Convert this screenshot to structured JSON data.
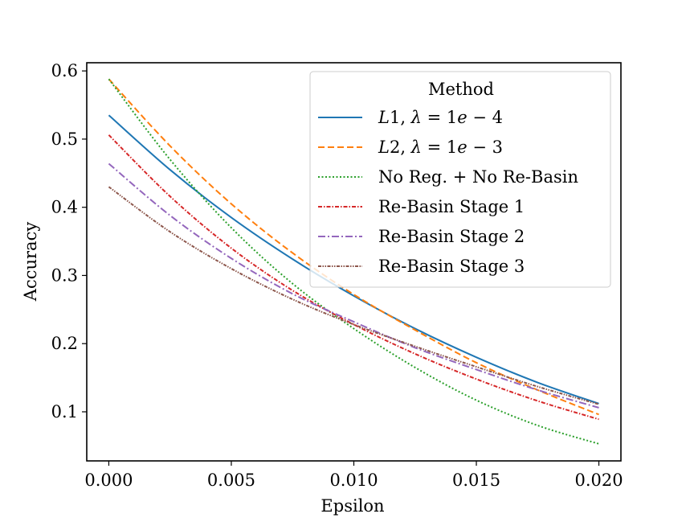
{
  "chart_data": {
    "type": "line",
    "title": "",
    "xlabel": "Epsilon",
    "ylabel": "Accuracy",
    "xlim": [
      -0.0009,
      0.0209
    ],
    "ylim": [
      0.028,
      0.612
    ],
    "xticks": [
      0.0,
      0.005,
      0.01,
      0.015,
      0.02
    ],
    "xtick_labels": [
      "0.000",
      "0.005",
      "0.010",
      "0.015",
      "0.020"
    ],
    "yticks": [
      0.1,
      0.2,
      0.3,
      0.4,
      0.5,
      0.6
    ],
    "ytick_labels": [
      "0.1",
      "0.2",
      "0.3",
      "0.4",
      "0.5",
      "0.6"
    ],
    "grid": false,
    "legend": {
      "title": "Method",
      "placement": "top-right"
    },
    "x": [
      0.0,
      0.0025,
      0.005,
      0.0075,
      0.01,
      0.0125,
      0.015,
      0.0175,
      0.02
    ],
    "series": [
      {
        "name": "L1, λ = 1e − 4",
        "legend_parts": [
          {
            "t": "L",
            "i": true
          },
          {
            "t": "1, ",
            "i": false
          },
          {
            "t": "λ",
            "i": true
          },
          {
            "t": " = 1",
            "i": false
          },
          {
            "t": "e",
            "i": true
          },
          {
            "t": " − 4",
            "i": false
          }
        ],
        "color": "#1f77b4",
        "dash": "",
        "values": [
          0.535,
          0.455,
          0.385,
          0.324,
          0.27,
          0.222,
          0.18,
          0.143,
          0.112
        ]
      },
      {
        "name": "L2, λ = 1e − 3",
        "legend_parts": [
          {
            "t": "L",
            "i": true
          },
          {
            "t": "2, ",
            "i": false
          },
          {
            "t": "λ",
            "i": true
          },
          {
            "t": " = 1",
            "i": false
          },
          {
            "t": "e",
            "i": true
          },
          {
            "t": " − 3",
            "i": false
          }
        ],
        "color": "#ff7f0e",
        "dash": "8,4",
        "values": [
          0.588,
          0.49,
          0.405,
          0.333,
          0.272,
          0.22,
          0.172,
          0.132,
          0.096
        ]
      },
      {
        "name": "No Reg. + No Re-Basin",
        "color": "#2ca02c",
        "dash": "2,2.5",
        "values": [
          0.588,
          0.47,
          0.37,
          0.288,
          0.222,
          0.165,
          0.117,
          0.08,
          0.053
        ]
      },
      {
        "name": "Re-Basin Stage 1",
        "color": "#d62728",
        "dash": "5,2,1.5,2",
        "values": [
          0.506,
          0.416,
          0.34,
          0.278,
          0.228,
          0.185,
          0.148,
          0.116,
          0.089
        ]
      },
      {
        "name": "Re-Basin Stage 2",
        "color": "#9467bd",
        "dash": "9,3,2,3",
        "values": [
          0.464,
          0.388,
          0.325,
          0.273,
          0.232,
          0.194,
          0.162,
          0.132,
          0.106
        ]
      },
      {
        "name": "Re-Basin Stage 3",
        "color": "#8c564b",
        "dash": "4,1.5,1.5,1.5,1.5,1.5",
        "values": [
          0.43,
          0.364,
          0.31,
          0.265,
          0.228,
          0.196,
          0.166,
          0.137,
          0.111
        ]
      }
    ]
  }
}
